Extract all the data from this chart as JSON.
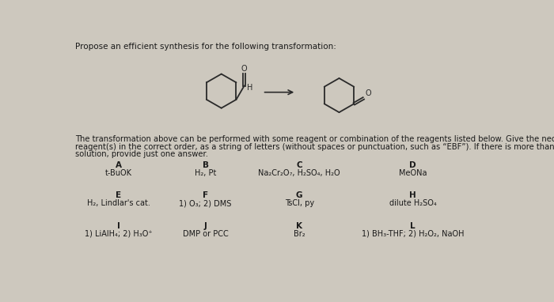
{
  "title": "Propose an efficient synthesis for the following transformation:",
  "description_line1": "The transformation above can be performed with some reagent or combination of the reagents listed below. Give the necessary",
  "description_line2": "reagent(s) in the correct order, as a string of letters (without spaces or punctuation, such as “EBF”). If there is more than one correct",
  "description_line3": "solution, provide just one answer.",
  "reagents": [
    {
      "label": "A",
      "text": "t-BuOK",
      "col": 0,
      "row": 0
    },
    {
      "label": "B",
      "text": "H₂, Pt",
      "col": 1,
      "row": 0
    },
    {
      "label": "C",
      "text": "Na₂Cr₂O₇, H₂SO₄, H₂O",
      "col": 2,
      "row": 0
    },
    {
      "label": "D",
      "text": "MeONa",
      "col": 3,
      "row": 0
    },
    {
      "label": "E",
      "text": "H₂, Lindlar's cat.",
      "col": 0,
      "row": 1
    },
    {
      "label": "F",
      "text": "1) O₃; 2) DMS",
      "col": 1,
      "row": 1
    },
    {
      "label": "G",
      "text": "TsCl, py",
      "col": 2,
      "row": 1
    },
    {
      "label": "H",
      "text": "dilute H₂SO₄",
      "col": 3,
      "row": 1
    },
    {
      "label": "I",
      "text": "1) LiAlH₄; 2) H₃O⁺",
      "col": 0,
      "row": 2
    },
    {
      "label": "J",
      "text": "DMP or PCC",
      "col": 1,
      "row": 2
    },
    {
      "label": "K",
      "text": "Br₂",
      "col": 2,
      "row": 2
    },
    {
      "label": "L",
      "text": "1) BH₃-THF; 2) H₂O₂, NaOH",
      "col": 3,
      "row": 2
    }
  ],
  "bg_color": "#cdc8be",
  "text_color": "#1a1a1a",
  "label_fontsize": 7.5,
  "reagent_fontsize": 7.0,
  "title_fontsize": 7.5,
  "desc_fontsize": 7.2
}
